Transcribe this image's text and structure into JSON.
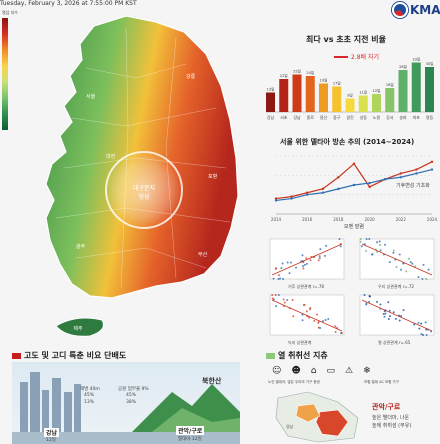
{
  "header": {
    "timestamp": "Tuesday, February 3, 2026 at 7:55:00 PM KST",
    "legend_title": "열섬 지수",
    "logo_text": "KMA"
  },
  "map": {
    "center_label_1": "대구분지",
    "center_label_2": "형성",
    "region_labels": [
      "서울",
      "강릉",
      "대전",
      "광주",
      "부산",
      "포항",
      "제주"
    ]
  },
  "bar_chart": {
    "title": "최다 vs 초초 지전 비율",
    "annotation": "2.8배 차기",
    "chart_data": {
      "type": "bar",
      "categories": [
        "강남",
        "서초",
        "강남",
        "종로",
        "용산",
        "중구",
        "광진",
        "성동",
        "노원",
        "강서",
        "송파",
        "마포",
        "영등"
      ],
      "values": [
        13,
        22,
        25,
        24,
        19,
        17,
        9,
        11,
        12,
        16,
        28,
        33,
        30
      ],
      "colors": [
        "#8b1a14",
        "#b42318",
        "#cf3a1a",
        "#e3651d",
        "#f09b23",
        "#f5c12c",
        "#f6d93b",
        "#d9e24a",
        "#aed45a",
        "#86c465",
        "#5fb06a",
        "#3f9a5c",
        "#2b8650"
      ]
    }
  },
  "line_chart": {
    "title": "서울 위한 델타아 방손 추의 (2014~2024)",
    "legend_a": "기후변성 기초화",
    "xlabel": "모멘 발렴",
    "chart_data": {
      "type": "line",
      "x": [
        "2014",
        "2015",
        "2016",
        "2017",
        "2018",
        "2019",
        "2020",
        "2021",
        "2022",
        "2023",
        "2024"
      ],
      "series": [
        {
          "name": "델타",
          "values": [
            8,
            9,
            11,
            13,
            19,
            26,
            14,
            18,
            21,
            23,
            27
          ]
        },
        {
          "name": "기후변성 기초화",
          "values": [
            7,
            8,
            10,
            11,
            13,
            15,
            16,
            18,
            19,
            21,
            23
          ]
        }
      ],
      "ylim": [
        0,
        30
      ]
    }
  },
  "scatter": {
    "titles": [
      "기후 상관관계 r=.78",
      "우리 상관관계 r=.72",
      "녹지 상관관계",
      "열 상관관계 r=.65"
    ]
  },
  "bottom_left": {
    "title": "고도 및 고디 특춘 비요 단배도",
    "mountain_label": "북한산",
    "stat1_label": "해발 40m",
    "stat1_a": "45%",
    "stat1_b": "13%",
    "stat2_label": "공원 업무율 9%",
    "stat2_a": "45%",
    "stat2_b": "38%",
    "left_region": "강남",
    "left_sub": "12일",
    "right_region": "관악/구로",
    "right_sub": "열대야 12일"
  },
  "bottom_right": {
    "title": "열 취취선 지츄",
    "icon_caption_1": "노인 별대아, 많은 우리의 가구 증센",
    "icon_caption_2": "보험 열대 AC 보험 가구",
    "region": "관악/구로",
    "desc1": "높은 별더마, 나운",
    "desc2": "높에 취취섬 (부유)",
    "tiny_label": "영남"
  }
}
